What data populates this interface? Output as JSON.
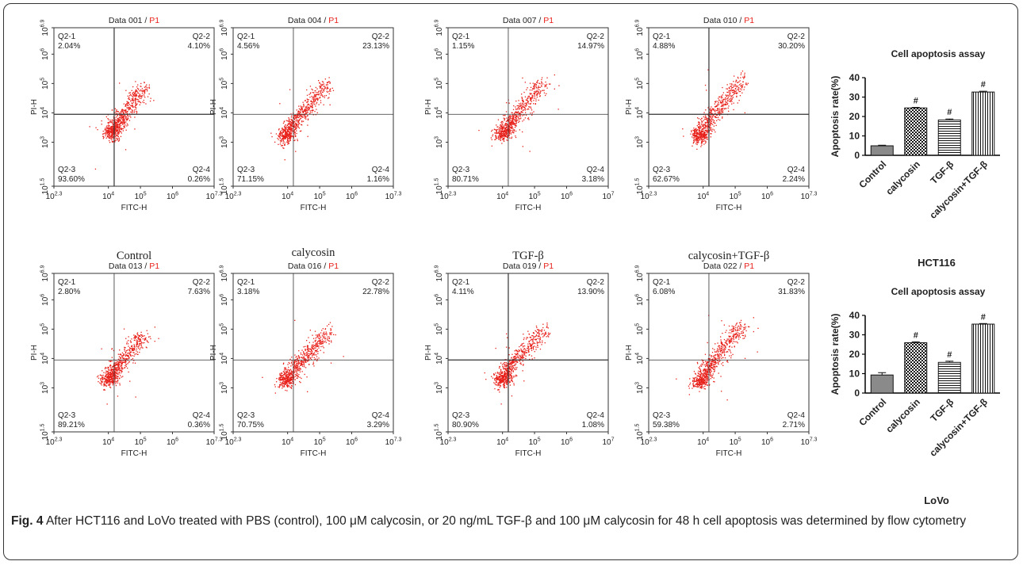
{
  "flow_plots": [
    {
      "title": "Data 001",
      "gate": "P1",
      "q1": "2.04%",
      "q2": "4.10%",
      "q3": "93.60%",
      "q4": "0.26%",
      "x_max": "10^7.3",
      "dots": [
        [
          4.05,
          3.3
        ],
        [
          4.35,
          3.75
        ],
        [
          4.7,
          4.3
        ],
        [
          5.1,
          4.9
        ]
      ]
    },
    {
      "title": "Data 004",
      "gate": "P1",
      "q1": "4.56%",
      "q2": "23.13%",
      "q3": "71.15%",
      "q4": "1.16%",
      "x_max": "10^7.3",
      "dots": [
        [
          3.9,
          3.2
        ],
        [
          4.3,
          3.85
        ],
        [
          4.75,
          4.4
        ],
        [
          5.2,
          5.0
        ]
      ]
    },
    {
      "title": "Data 007",
      "gate": "P1",
      "q1": "1.15%",
      "q2": "14.97%",
      "q3": "80.71%",
      "q4": "3.18%",
      "x_max": "10^7",
      "dots": [
        [
          3.95,
          3.25
        ],
        [
          4.3,
          3.8
        ],
        [
          4.8,
          4.45
        ],
        [
          5.3,
          5.05
        ]
      ]
    },
    {
      "title": "Data 010",
      "gate": "P1",
      "q1": "4.88%",
      "q2": "30.20%",
      "q3": "62.67%",
      "q4": "2.24%",
      "x_max": "10^7.3",
      "dots": [
        [
          3.85,
          3.15
        ],
        [
          4.25,
          3.9
        ],
        [
          4.75,
          4.55
        ],
        [
          5.2,
          5.15
        ]
      ]
    },
    {
      "title": "Data 013",
      "gate": "P1",
      "q1": "2.80%",
      "q2": "7.63%",
      "q3": "89.21%",
      "q4": "0.36%",
      "x_max": "10^7.3",
      "dots": [
        [
          3.95,
          3.25
        ],
        [
          4.3,
          3.8
        ],
        [
          4.7,
          4.3
        ],
        [
          5.1,
          4.8
        ]
      ]
    },
    {
      "title": "Data 016",
      "gate": "P1",
      "q1": "3.18%",
      "q2": "22.78%",
      "q3": "70.75%",
      "q4": "3.29%",
      "x_max": "10^7.3",
      "dots": [
        [
          3.9,
          3.2
        ],
        [
          4.3,
          3.85
        ],
        [
          4.8,
          4.4
        ],
        [
          5.3,
          4.95
        ]
      ]
    },
    {
      "title": "Data 019",
      "gate": "P1",
      "q1": "4.11%",
      "q2": "13.90%",
      "q3": "80.90%",
      "q4": "1.08%",
      "x_max": "10^7",
      "dots": [
        [
          3.95,
          3.25
        ],
        [
          4.3,
          3.85
        ],
        [
          4.8,
          4.45
        ],
        [
          5.3,
          5.0
        ]
      ]
    },
    {
      "title": "Data 022",
      "gate": "P1",
      "q1": "6.08%",
      "q2": "31.83%",
      "q3": "59.38%",
      "q4": "2.71%",
      "x_max": "10^7.3",
      "dots": [
        [
          3.85,
          3.15
        ],
        [
          4.25,
          3.9
        ],
        [
          4.75,
          4.55
        ],
        [
          5.25,
          5.15
        ]
      ]
    }
  ],
  "plot_text": {
    "x_ticks": [
      "10^2.3",
      "10^4",
      "10^5",
      "10^6"
    ],
    "y_ticks": [
      "10^1.5",
      "10^3",
      "10^4",
      "10^5",
      "10^6",
      "10^6.9"
    ],
    "q1_label": "Q2-1",
    "q2_label": "Q2-2",
    "q3_label": "Q2-3",
    "q4_label": "Q2-4",
    "x_axis": "FITC-H",
    "y_axis": "PI-H"
  },
  "column_labels": [
    "Control",
    "calycosin",
    "TGF-β",
    "calycosin+TGF-β"
  ],
  "chart_data": [
    {
      "type": "bar",
      "title": "Cell apoptosis assay",
      "xlabel": "HCT116",
      "ylabel": "Apoptosis rate(%)",
      "categories": [
        "Control",
        "calycosin",
        "TGF-β",
        "calycosin+TGF-β"
      ],
      "values": [
        4.9,
        24.4,
        18.2,
        32.6
      ],
      "errors": [
        0.3,
        0.3,
        0.5,
        0.4
      ],
      "annotations": [
        "",
        "#",
        "#",
        "#"
      ],
      "ylim": [
        0,
        40
      ],
      "yticks": [
        0,
        10,
        20,
        30,
        40
      ]
    },
    {
      "type": "bar",
      "title": "Cell apoptosis assay",
      "xlabel": "LoVo",
      "ylabel": "Apoptosis rate(%)",
      "categories": [
        "Control",
        "calycosin",
        "TGF-β",
        "calycosin+TGF-β"
      ],
      "values": [
        9.3,
        25.9,
        15.8,
        35.5
      ],
      "errors": [
        1.2,
        0.5,
        0.6,
        0.3
      ],
      "annotations": [
        "",
        "#",
        "#",
        "#"
      ],
      "ylim": [
        0,
        40
      ],
      "yticks": [
        0,
        10,
        20,
        30,
        40
      ]
    }
  ],
  "caption": {
    "label": "Fig. 4",
    "text": "After HCT116 and LoVo treated with PBS (control), 100 μM calycosin, or 20 ng/mL TGF-β and 100 μM calycosin for 48 h cell apoptosis was determined by flow cytometry"
  },
  "colors": {
    "dots": "#e8201a",
    "gate": "#e8201a",
    "axis": "#333333"
  }
}
